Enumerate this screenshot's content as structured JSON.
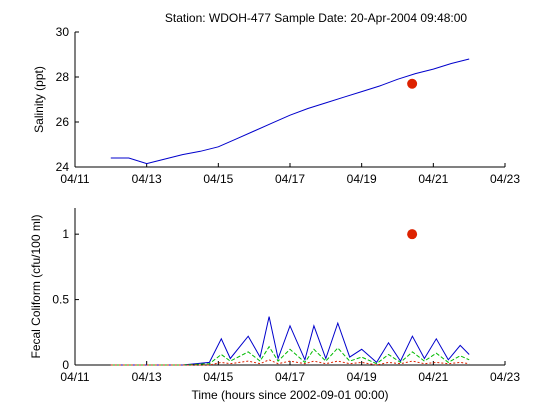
{
  "title": "Station: WDOH-477   Sample Date: 20-Apr-2004 09:48:00",
  "colors": {
    "series_blue": "#0000cc",
    "series_green": "#00bb00",
    "sample_red": "#dd2200",
    "axis": "#000000"
  },
  "chart_data": [
    {
      "type": "line",
      "ylabel": "Salinity (ppt)",
      "xlim": [
        "2004-04-11",
        "2004-04-23"
      ],
      "ylim": [
        24,
        30
      ],
      "x_ticks": [
        "04/11",
        "04/13",
        "04/15",
        "04/17",
        "04/19",
        "04/21",
        "04/23"
      ],
      "y_ticks": [
        "24",
        "26",
        "28",
        "30"
      ],
      "series": [
        {
          "x": [
            "2004-04-12T00:00",
            "2004-04-12T12:00",
            "2004-04-13T00:00",
            "2004-04-13T06:00",
            "2004-04-13T12:00",
            "2004-04-14T00:00",
            "2004-04-14T12:00",
            "2004-04-15T00:00",
            "2004-04-15T12:00",
            "2004-04-16T00:00",
            "2004-04-16T12:00",
            "2004-04-17T00:00",
            "2004-04-17T12:00",
            "2004-04-18T00:00",
            "2004-04-18T12:00",
            "2004-04-19T00:00",
            "2004-04-19T12:00",
            "2004-04-20T00:00",
            "2004-04-20T12:00",
            "2004-04-21T00:00",
            "2004-04-21T12:00",
            "2004-04-22T00:00"
          ],
          "y": [
            24.4,
            24.4,
            24.15,
            24.25,
            24.35,
            24.55,
            24.7,
            24.9,
            25.25,
            25.6,
            25.95,
            26.3,
            26.6,
            26.85,
            27.1,
            27.35,
            27.6,
            27.9,
            28.15,
            28.35,
            28.6,
            28.8
          ]
        }
      ],
      "sample_point": {
        "x": "2004-04-20T09:48",
        "y": 27.7
      }
    },
    {
      "type": "line",
      "ylabel": "Fecal Coliform (cfu/100 ml)",
      "xlabel": "Time (hours since 2002-09-01 00:00)",
      "xlim": [
        "2004-04-11",
        "2004-04-23"
      ],
      "ylim": [
        0,
        1.2
      ],
      "x_ticks": [
        "04/11",
        "04/13",
        "04/15",
        "04/17",
        "04/19",
        "04/21",
        "04/23"
      ],
      "y_ticks": [
        "0",
        "0.5",
        "1"
      ],
      "series": [
        {
          "x": [
            "2004-04-12T00:00",
            "2004-04-14T00:00",
            "2004-04-14T18:00",
            "2004-04-15T02:00",
            "2004-04-15T08:00",
            "2004-04-15T20:00",
            "2004-04-16T04:00",
            "2004-04-16T10:00",
            "2004-04-16T16:00",
            "2004-04-17T00:00",
            "2004-04-17T10:00",
            "2004-04-17T16:00",
            "2004-04-18T00:00",
            "2004-04-18T08:00",
            "2004-04-18T16:00",
            "2004-04-19T00:00",
            "2004-04-19T10:00",
            "2004-04-19T18:00",
            "2004-04-20T02:00",
            "2004-04-20T10:00",
            "2004-04-20T18:00",
            "2004-04-21T02:00",
            "2004-04-21T10:00",
            "2004-04-21T18:00",
            "2004-04-22T00:00"
          ],
          "y": [
            0.0,
            0.0,
            0.02,
            0.2,
            0.05,
            0.22,
            0.06,
            0.37,
            0.05,
            0.3,
            0.04,
            0.3,
            0.05,
            0.32,
            0.06,
            0.12,
            0.02,
            0.17,
            0.03,
            0.22,
            0.05,
            0.2,
            0.04,
            0.15,
            0.08
          ]
        },
        {
          "x": [
            "2004-04-12T00:00",
            "2004-04-14T00:00",
            "2004-04-14T18:00",
            "2004-04-15T02:00",
            "2004-04-15T08:00",
            "2004-04-15T20:00",
            "2004-04-16T04:00",
            "2004-04-16T10:00",
            "2004-04-16T16:00",
            "2004-04-17T00:00",
            "2004-04-17T10:00",
            "2004-04-17T16:00",
            "2004-04-18T00:00",
            "2004-04-18T08:00",
            "2004-04-18T16:00",
            "2004-04-19T00:00",
            "2004-04-19T10:00",
            "2004-04-19T18:00",
            "2004-04-20T02:00",
            "2004-04-20T10:00",
            "2004-04-20T18:00",
            "2004-04-21T02:00",
            "2004-04-21T10:00",
            "2004-04-21T18:00",
            "2004-04-22T00:00"
          ],
          "y": [
            0.0,
            0.0,
            0.01,
            0.08,
            0.03,
            0.1,
            0.03,
            0.14,
            0.03,
            0.12,
            0.02,
            0.12,
            0.03,
            0.13,
            0.03,
            0.06,
            0.01,
            0.08,
            0.02,
            0.1,
            0.03,
            0.09,
            0.02,
            0.07,
            0.04
          ]
        },
        {
          "x": [
            "2004-04-12T00:00",
            "2004-04-14T00:00",
            "2004-04-14T18:00",
            "2004-04-15T02:00",
            "2004-04-15T08:00",
            "2004-04-15T20:00",
            "2004-04-16T04:00",
            "2004-04-16T10:00",
            "2004-04-16T16:00",
            "2004-04-17T00:00",
            "2004-04-17T10:00",
            "2004-04-17T16:00",
            "2004-04-18T00:00",
            "2004-04-18T08:00",
            "2004-04-18T16:00",
            "2004-04-19T00:00",
            "2004-04-19T10:00",
            "2004-04-19T18:00",
            "2004-04-20T02:00",
            "2004-04-20T10:00",
            "2004-04-20T18:00",
            "2004-04-21T02:00",
            "2004-04-21T10:00",
            "2004-04-21T18:00",
            "2004-04-22T00:00"
          ],
          "y": [
            0.0,
            0.0,
            0.0,
            0.02,
            0.01,
            0.03,
            0.01,
            0.04,
            0.01,
            0.03,
            0.01,
            0.03,
            0.01,
            0.03,
            0.01,
            0.02,
            0.0,
            0.02,
            0.01,
            0.03,
            0.01,
            0.02,
            0.01,
            0.02,
            0.01
          ]
        }
      ],
      "sample_point": {
        "x": "2004-04-20T09:48",
        "y": 1.0
      }
    }
  ]
}
